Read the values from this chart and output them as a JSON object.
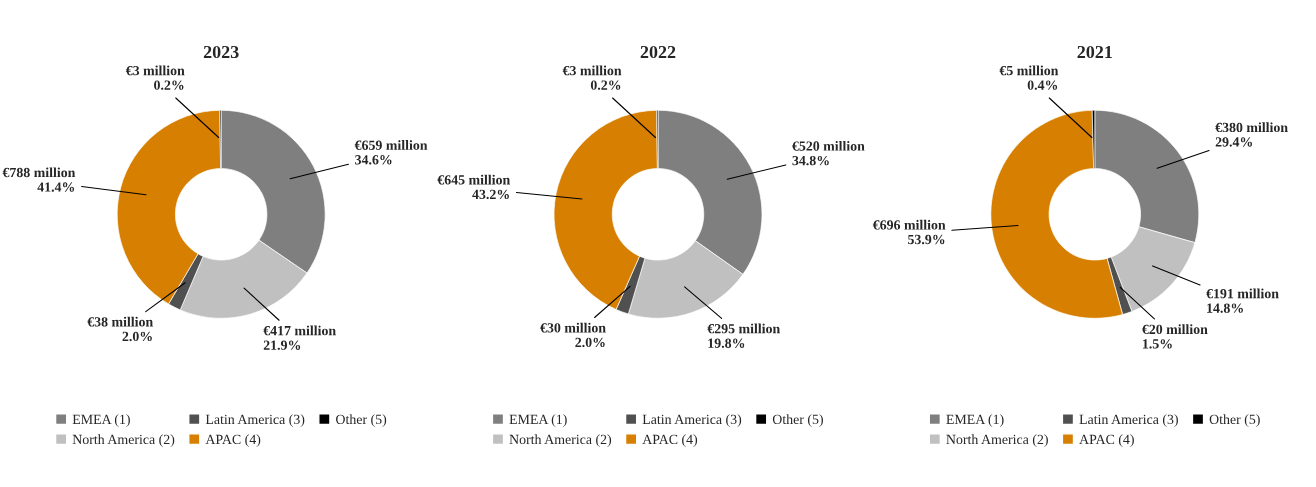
{
  "chart_data": [
    {
      "type": "donut",
      "title": "2023",
      "categories": [
        "EMEA (1)",
        "North America (2)",
        "Latin America (3)",
        "APAC (4)",
        "Other (5)"
      ],
      "values": [
        34.6,
        21.9,
        2.0,
        41.4,
        0.2
      ],
      "colors": [
        "#7f7f7f",
        "#c0c0c0",
        "#505050",
        "#d67f00",
        "#000000"
      ],
      "value_labels": [
        "€659 million\n34.6%",
        "€417 million\n21.9%",
        "€38 million\n2.0%",
        "€788 million\n41.4%",
        "€3 million\n0.2%"
      ],
      "legend": "bottom"
    },
    {
      "type": "donut",
      "title": "2022",
      "categories": [
        "EMEA (1)",
        "North America (2)",
        "Latin America (3)",
        "APAC (4)",
        "Other (5)"
      ],
      "values": [
        34.8,
        19.8,
        2.0,
        43.2,
        0.2
      ],
      "colors": [
        "#7f7f7f",
        "#c0c0c0",
        "#505050",
        "#d67f00",
        "#000000"
      ],
      "value_labels": [
        "€520 million\n34.8%",
        "€295 million\n19.8%",
        "€30 million\n2.0%",
        "€645 million\n43.2%",
        "€3 million\n0.2%"
      ],
      "legend": "bottom"
    },
    {
      "type": "donut",
      "title": "2021",
      "categories": [
        "EMEA (1)",
        "North America (2)",
        "Latin America (3)",
        "APAC (4)",
        "Other (5)"
      ],
      "values": [
        29.4,
        14.8,
        1.5,
        53.9,
        0.4
      ],
      "colors": [
        "#7f7f7f",
        "#c0c0c0",
        "#505050",
        "#d67f00",
        "#000000"
      ],
      "value_labels": [
        "€380 million\n29.4%",
        "€191 million\n14.8%",
        "€20 million\n1.5%",
        "€696 million\n53.9%",
        "€5 million\n0.4%"
      ],
      "legend": "bottom"
    }
  ]
}
